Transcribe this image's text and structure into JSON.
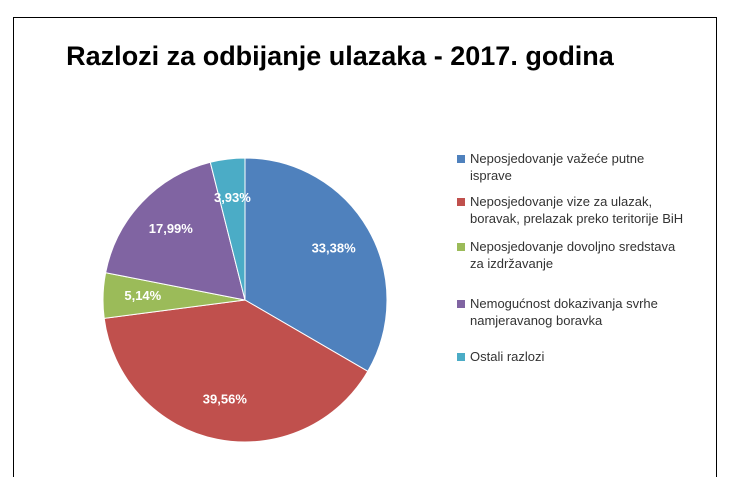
{
  "chart_data": {
    "type": "pie",
    "title": "Razlozi za odbijanje ulazaka - 2017. godina",
    "categories": [
      "Neposjedovanje važeće putne isprave",
      "Neposjedovanje vize za ulazak, boravak, prelazak preko teritorije BiH",
      "Neposjedovanje dovoljno sredstava za izdržavanje",
      "Nemogućnost dokazivanja svrhe namjeravanog boravka",
      "Ostali razlozi"
    ],
    "values": [
      33.38,
      39.56,
      5.14,
      17.99,
      3.93
    ],
    "value_labels": [
      "33,38%",
      "39,56%",
      "5,14%",
      "17,99%",
      "3,93%"
    ],
    "colors": [
      "#4f81bd",
      "#c0504d",
      "#9bbb59",
      "#8064a2",
      "#4bacc6"
    ],
    "legend": "right"
  }
}
